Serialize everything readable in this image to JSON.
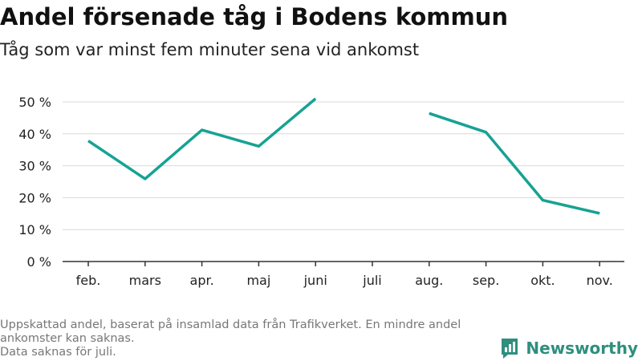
{
  "header": {
    "title": "Andel försenade tåg i Bodens kommun",
    "subtitle": "Tåg som var minst fem minuter sena vid ankomst"
  },
  "footer": {
    "note_line1": "Uppskattad andel, baserat på insamlad data från Trafikverket. En mindre andel ankomster kan saknas.",
    "note_line2": "Data saknas för juli."
  },
  "brand": {
    "name": "Newsworthy",
    "color": "#2e8f7e"
  },
  "chart_data": {
    "type": "line",
    "categories": [
      "feb.",
      "mars",
      "apr.",
      "maj",
      "juni",
      "juli",
      "aug.",
      "sep.",
      "okt.",
      "nov."
    ],
    "series": [
      {
        "values": [
          37.8,
          25.9,
          41.2,
          36.1,
          51.0,
          null,
          46.4,
          40.5,
          19.2,
          15.1
        ],
        "color": "#16a293"
      }
    ],
    "yticks": [
      0,
      10,
      20,
      30,
      40,
      50
    ],
    "ytick_labels": [
      "0 %",
      "10 %",
      "20 %",
      "30 %",
      "40 %",
      "50 %"
    ],
    "ylim": [
      0,
      50
    ],
    "grid": true
  }
}
